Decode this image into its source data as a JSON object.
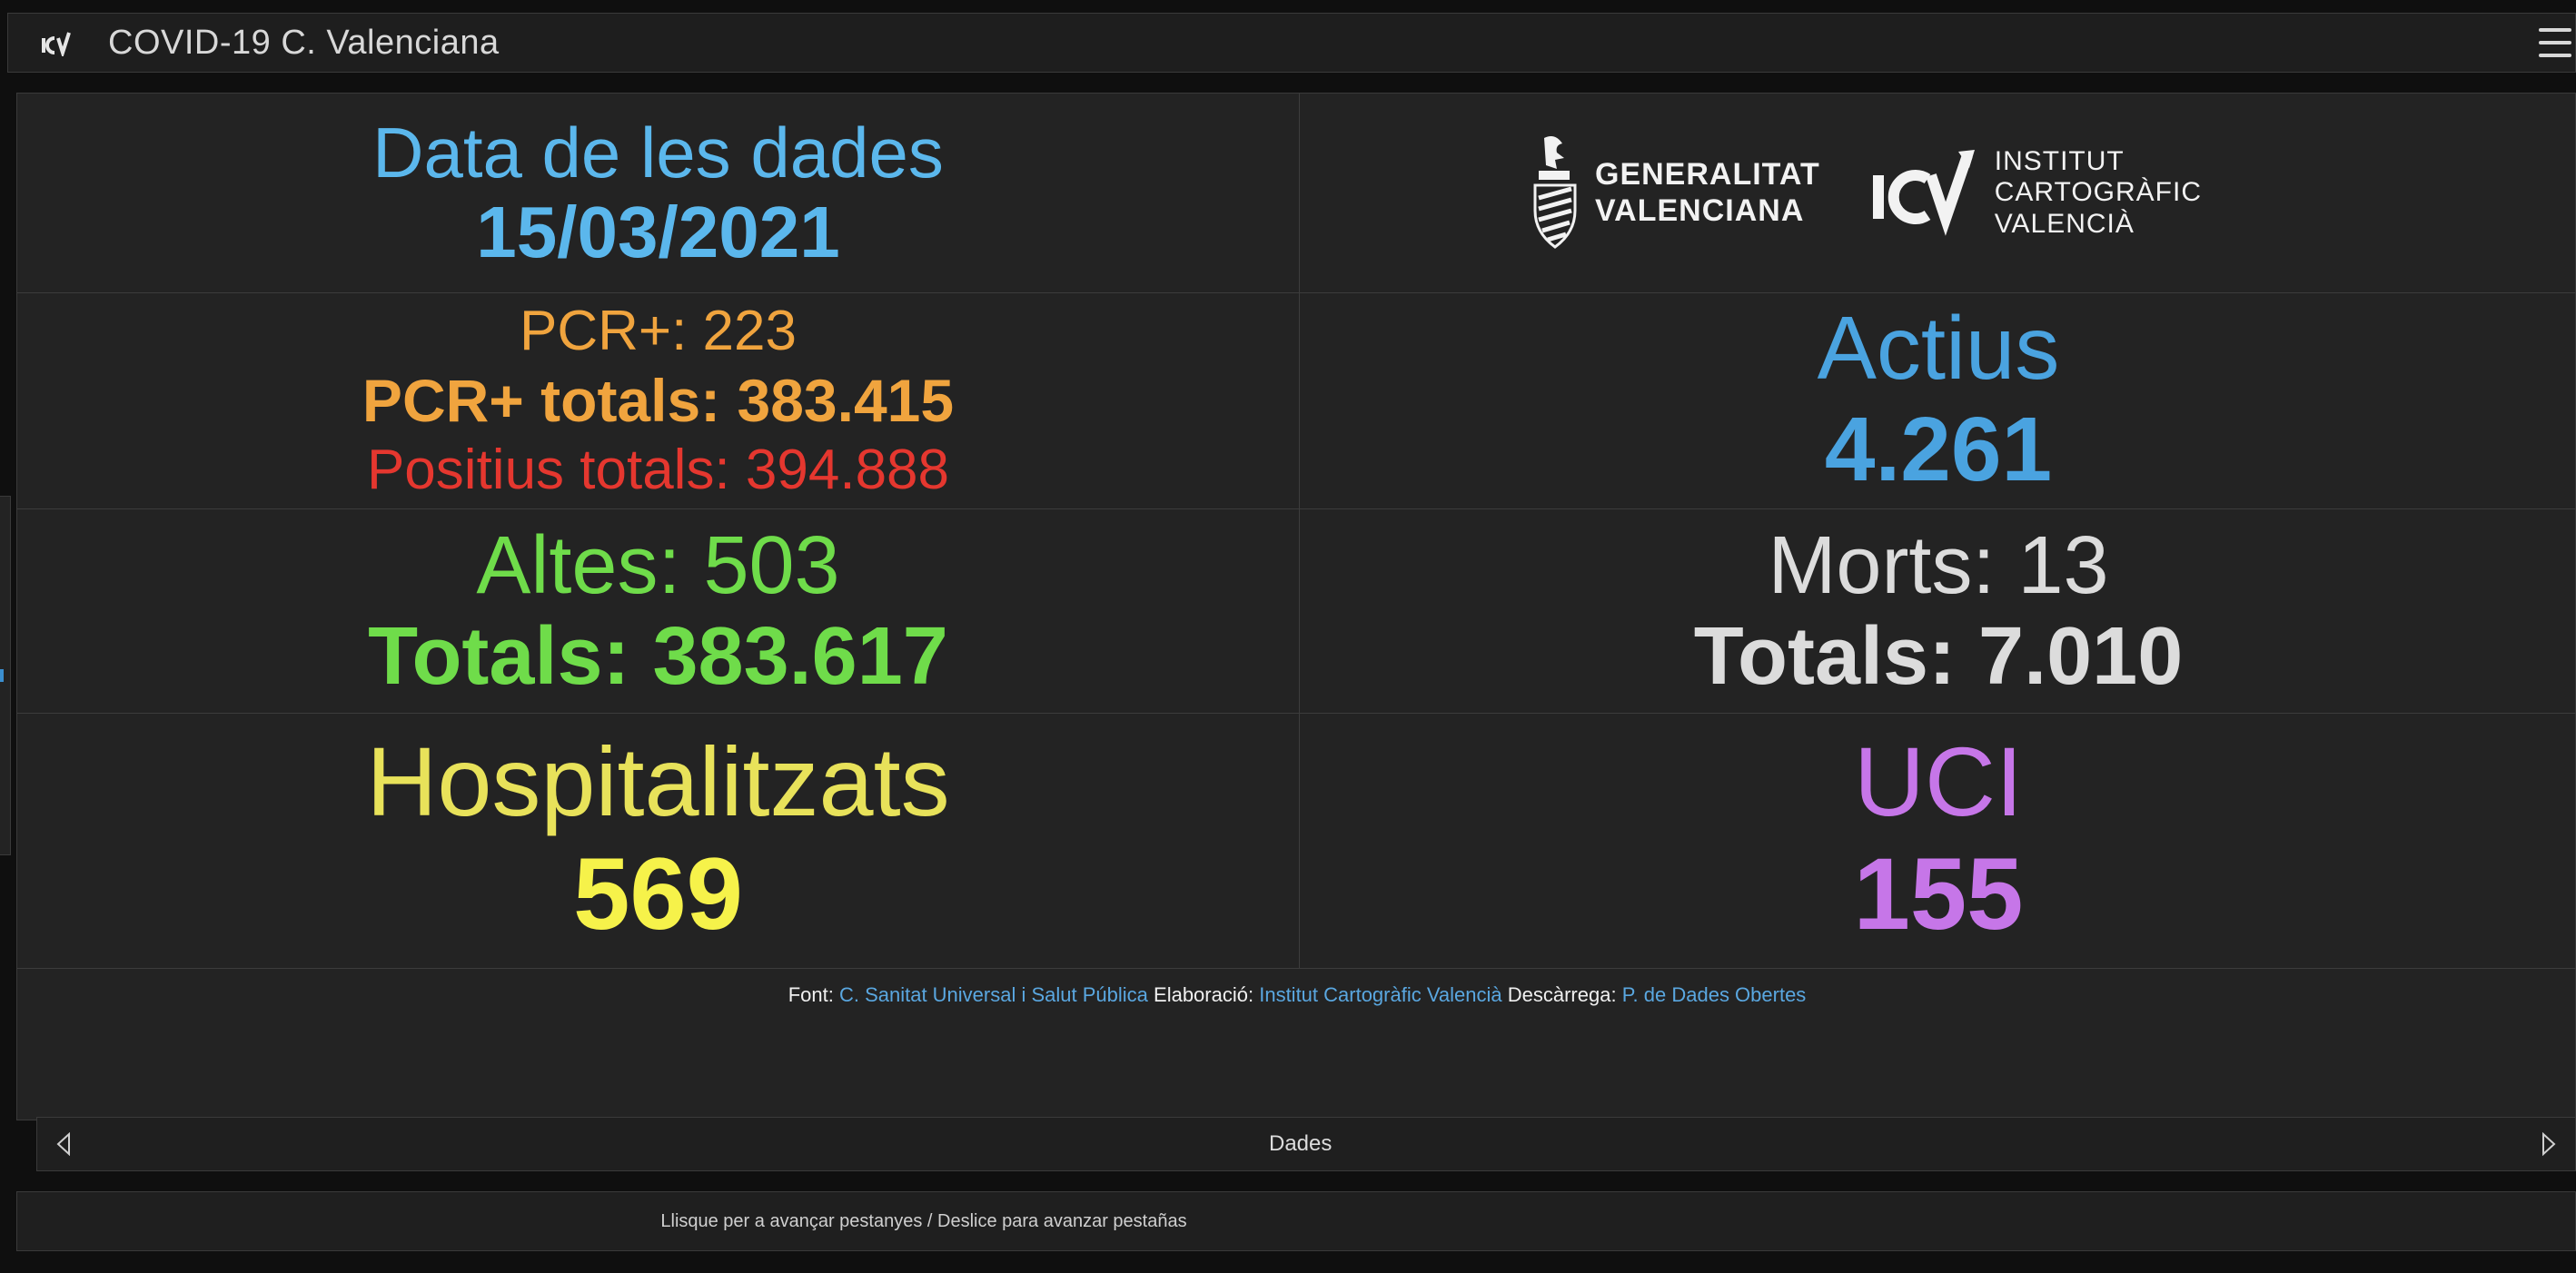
{
  "header": {
    "title": "COVID-19 C. Valenciana",
    "logo_icon": "icv-logo-icon",
    "menu_icon": "hamburger-menu-icon"
  },
  "dashboard": {
    "date_label": "Data de les dades",
    "date_value": "15/03/2021",
    "logos": {
      "gva_line1": "GENERALITAT",
      "gva_line2": "VALENCIANA",
      "icv_line1": "INSTITUT",
      "icv_line2": "CARTOGRÀFIC",
      "icv_line3": "VALENCIÀ"
    },
    "pcr_daily": "PCR+: 223",
    "pcr_total": "PCR+ totals: 383.415",
    "positius_total": "Positius totals: 394.888",
    "actius_label": "Actius",
    "actius_value": "4.261",
    "altes_daily": "Altes: 503",
    "altes_total": "Totals: 383.617",
    "morts_daily": "Morts: 13",
    "morts_total": "Totals: 7.010",
    "hosp_label": "Hospitalitzats",
    "hosp_value": "569",
    "uci_label": "UCI",
    "uci_value": "155"
  },
  "source": {
    "font_label": "Font:",
    "font_link": "C. Sanitat Universal i Salut Pública",
    "elab_label": "Elaboració:",
    "elab_link": "Institut Cartogràfic Valencià",
    "desc_label": "Descàrrega:",
    "desc_link": "P. de Dades Obertes"
  },
  "tabbar": {
    "label": "Dades",
    "prev_icon": "triangle-left-icon",
    "next_icon": "triangle-right-icon"
  },
  "footer": {
    "hint": "Llisque per a avançar pestanyes / Deslice para avanzar pestañas"
  },
  "colors": {
    "date": "#5bb7ec",
    "pcr": "#f0a43e",
    "positius": "#e5372f",
    "actius": "#4aa3e0",
    "altes": "#6fdc4a",
    "morts": "#dcdcdc",
    "hosp": "#f6f24a",
    "uci": "#c676e8"
  }
}
